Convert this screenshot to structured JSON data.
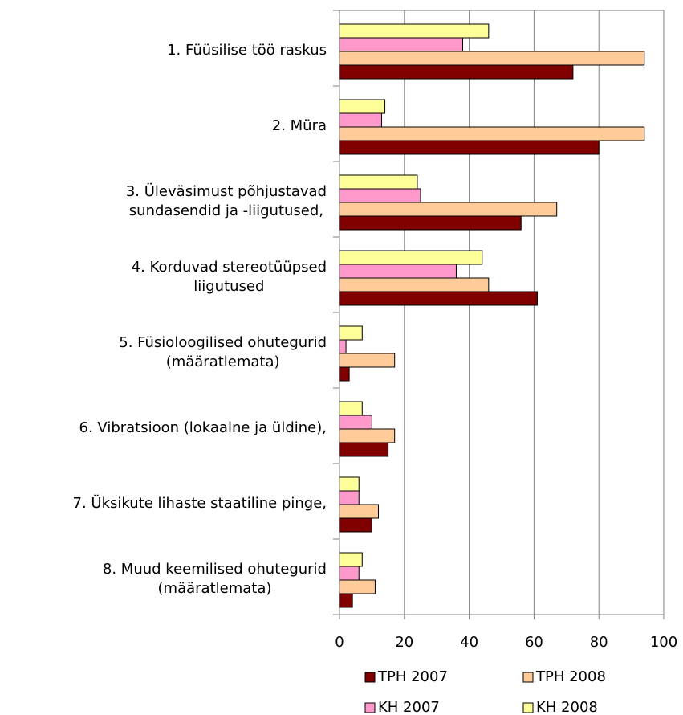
{
  "chart_data": {
    "type": "bar",
    "orientation": "horizontal",
    "categories": [
      "1. Füüsilise töö raskus ",
      "2. Müra",
      "3. Üleväsimust põhjustavad\nsundasendid ja -liigutused,",
      "4. Korduvad stereotüüpsed\nliigutused",
      "5. Füsioloogilised ohutegurid\n(määratlemata)",
      "6. Vibratsioon (lokaalne ja üldine),",
      "7. Üksikute lihaste staatiline pinge,",
      "8. Muud keemilised ohutegurid\n(määratlemata)"
    ],
    "series": [
      {
        "name": "TPH 2007",
        "color": "#800000",
        "values": [
          72,
          80,
          56,
          61,
          3,
          15,
          10,
          4
        ]
      },
      {
        "name": "TPH 2008",
        "color": "#ffcc99",
        "values": [
          94,
          94,
          67,
          46,
          17,
          17,
          12,
          11
        ]
      },
      {
        "name": "KH 2007",
        "color": "#ff99cc",
        "values": [
          38,
          13,
          25,
          36,
          2,
          10,
          6,
          6
        ]
      },
      {
        "name": "KH 2008",
        "color": "#ffff99",
        "values": [
          46,
          14,
          24,
          44,
          7,
          7,
          6,
          7
        ]
      }
    ],
    "xlim": [
      0,
      100
    ],
    "xticks": [
      0,
      20,
      40,
      60,
      80,
      100
    ],
    "grid": true,
    "legend": "bottom"
  }
}
